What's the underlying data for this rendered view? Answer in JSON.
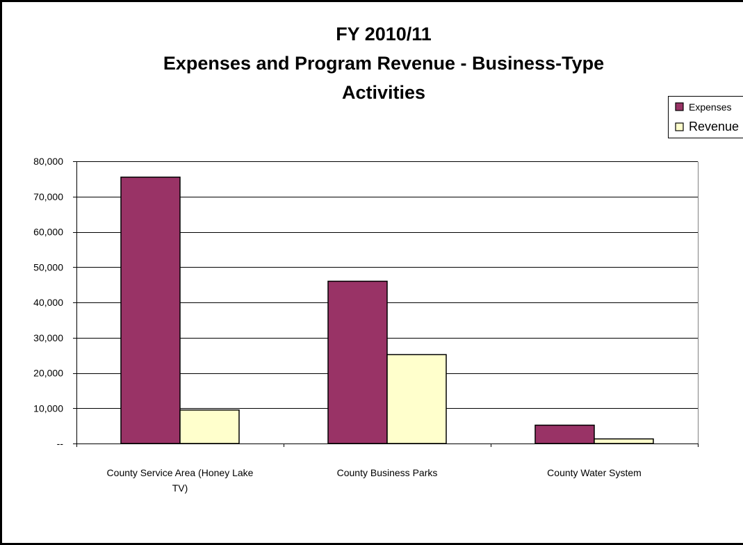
{
  "chart_data": {
    "type": "bar",
    "title_lines": [
      "FY 2010/11",
      "Expenses and Program Revenue - Business-Type",
      "Activities"
    ],
    "categories": [
      [
        "County Service Area (Honey Lake",
        "TV)"
      ],
      [
        "County Business Parks"
      ],
      [
        "County Water System"
      ]
    ],
    "series": [
      {
        "name": "Expenses",
        "color": "#993366",
        "values": [
          75500,
          46000,
          5200
        ]
      },
      {
        "name": "Revenue",
        "color": "#FFFFCC",
        "values": [
          9500,
          25200,
          1300
        ]
      }
    ],
    "y_ticks": [
      {
        "value": 0,
        "label": "--"
      },
      {
        "value": 10000,
        "label": "10,000"
      },
      {
        "value": 20000,
        "label": "20,000"
      },
      {
        "value": 30000,
        "label": "30,000"
      },
      {
        "value": 40000,
        "label": "40,000"
      },
      {
        "value": 50000,
        "label": "50,000"
      },
      {
        "value": 60000,
        "label": "60,000"
      },
      {
        "value": 70000,
        "label": "70,000"
      },
      {
        "value": 80000,
        "label": "80,000"
      }
    ],
    "ylim": [
      0,
      80000
    ],
    "grid": true,
    "legend_position": "top-right",
    "xlabel": "",
    "ylabel": ""
  }
}
